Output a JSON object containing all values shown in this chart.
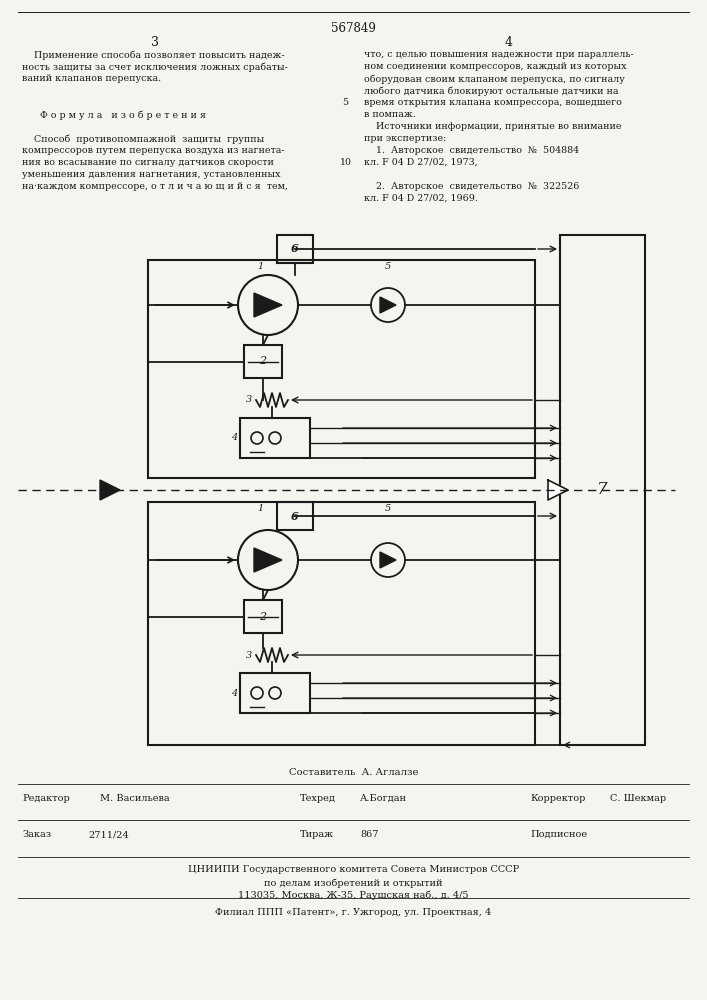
{
  "patent_number": "567849",
  "page_left": "3",
  "page_right": "4",
  "col_left_text": [
    "    Применение способа позволяет повысить надеж-",
    "ность защиты за счет исключения ложных срабаты-",
    "ваний клапанов перепуска.",
    "",
    "",
    "      Ф о р м у л а   и з о б р е т е н и я",
    "",
    "    Способ  противопомпажной  защиты  группы",
    "компрессоров путем перепуска воздуха из нагнета-",
    "ния во всасывание по сигналу датчиков скорости",
    "уменьшения давления нагнетания, установленных",
    "на·каждом компрессоре, о т л и ч а ю щ и й с я  тем,"
  ],
  "col_right_text": [
    "что, с целью повышения надежности при параллель-",
    "ном соединении компрессоров, каждый из которых",
    "оборудован своим клапаном перепуска, по сигналу",
    "любого датчика блокируют остальные датчики на",
    "время открытия клапана компрессора, вошедшего",
    "в помпаж.",
    "    Источники информации, принятые во внимание",
    "при экспертизе:",
    "    1.  Авторское  свидетельство  №  504884",
    "кл. F 04 D 27/02, 1973,",
    "",
    "    2.  Авторское  свидетельство  №  322526",
    "кл. F 04 D 27/02, 1969."
  ],
  "line_number_5": "5",
  "line_number_10": "10",
  "footer_composer": "Составитель  А. Аглалзе",
  "footer_editor": "Редактор",
  "footer_editor_name": "М. Васильева",
  "footer_techred": "Техред",
  "footer_techred_name": "А.Богдан",
  "footer_corrector": "Корректор",
  "footer_corrector_name": "С. Шекмар",
  "footer_order": "Заказ",
  "footer_order_num": "2711/24",
  "footer_tirazh": "Тираж",
  "footer_tirazh_num": "867",
  "footer_podpisnoe": "Подписное",
  "footer_org1": "ЦНИИПИ Государственного комитета Совета Министров СССР",
  "footer_org2": "по делам изобретений и открытий",
  "footer_org3": "113035, Москва, Ж-35, Раушская наб., д. 4/5",
  "footer_filial": "Филиал ППП «Патент», г. Ужгород, ул. Проектная, 4",
  "bg_color": "#f5f5f0",
  "text_color": "#1a1a1a"
}
